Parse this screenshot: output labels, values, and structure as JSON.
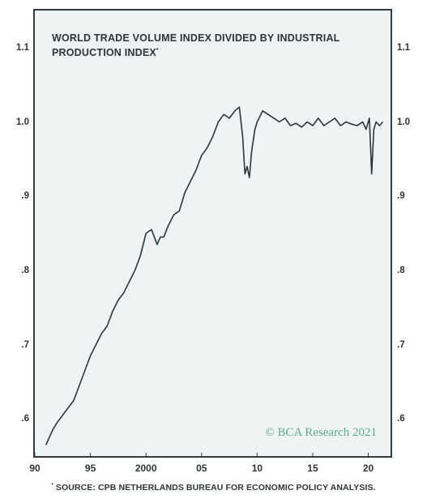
{
  "chart_data": {
    "type": "line",
    "title": "WORLD TRADE VOLUME INDEX DIVIDED BY INDUSTRIAL PRODUCTION INDEX",
    "title_marker": "*",
    "xlabel": "",
    "ylabel": "",
    "xlim": [
      1990,
      2022
    ],
    "ylim": [
      0.55,
      1.15
    ],
    "x_ticks": [
      1990,
      1995,
      2000,
      2005,
      2010,
      2015,
      2020
    ],
    "x_tick_labels": [
      "90",
      "95",
      "2000",
      "05",
      "10",
      "15",
      "20"
    ],
    "y_ticks": [
      0.6,
      0.7,
      0.8,
      0.9,
      1.0,
      1.1
    ],
    "y_tick_labels": [
      ".6",
      ".7",
      ".8",
      ".9",
      "1.0",
      "1.1"
    ],
    "grid": false,
    "line_color": "#2d3538",
    "series": [
      {
        "x": [
          1991.0,
          1991.3,
          1991.6,
          1992.0,
          1992.5,
          1993.0,
          1993.5,
          1994.0,
          1994.5,
          1995.0,
          1995.5,
          1996.0,
          1996.5,
          1997.0,
          1997.5,
          1998.0,
          1998.5,
          1999.0,
          1999.5,
          2000.0,
          2000.5,
          2001.0,
          2001.3,
          2001.6,
          2002.0,
          2002.5,
          2003.0,
          2003.5,
          2004.0,
          2004.5,
          2005.0,
          2005.5,
          2006.0,
          2006.5,
          2007.0,
          2007.5,
          2008.0,
          2008.4,
          2008.7,
          2008.9,
          2009.1,
          2009.3,
          2009.5,
          2009.8,
          2010.0,
          2010.5,
          2011.0,
          2011.5,
          2012.0,
          2012.5,
          2013.0,
          2013.5,
          2014.0,
          2014.5,
          2015.0,
          2015.5,
          2016.0,
          2016.5,
          2017.0,
          2017.5,
          2018.0,
          2018.5,
          2019.0,
          2019.5,
          2019.8,
          2020.1,
          2020.3,
          2020.5,
          2020.7,
          2021.0,
          2021.3
        ],
        "y": [
          0.565,
          0.575,
          0.585,
          0.595,
          0.605,
          0.615,
          0.625,
          0.645,
          0.665,
          0.685,
          0.7,
          0.715,
          0.725,
          0.745,
          0.76,
          0.77,
          0.785,
          0.8,
          0.82,
          0.85,
          0.855,
          0.835,
          0.845,
          0.845,
          0.86,
          0.875,
          0.88,
          0.905,
          0.92,
          0.935,
          0.955,
          0.965,
          0.98,
          1.0,
          1.01,
          1.005,
          1.015,
          1.02,
          0.98,
          0.93,
          0.94,
          0.925,
          0.96,
          0.99,
          1.0,
          1.015,
          1.01,
          1.005,
          1.0,
          1.005,
          0.995,
          0.998,
          0.993,
          1.0,
          0.995,
          1.005,
          0.995,
          1.0,
          1.005,
          0.995,
          1.0,
          0.997,
          0.995,
          1.0,
          0.99,
          1.005,
          0.93,
          0.99,
          1.0,
          0.995,
          1.0
        ]
      }
    ]
  },
  "watermark": "© BCA Research 2021",
  "source_marker": "*",
  "source": "SOURCE: CPB NETHERLANDS BUREAU FOR ECONOMIC POLICY ANALYSIS."
}
